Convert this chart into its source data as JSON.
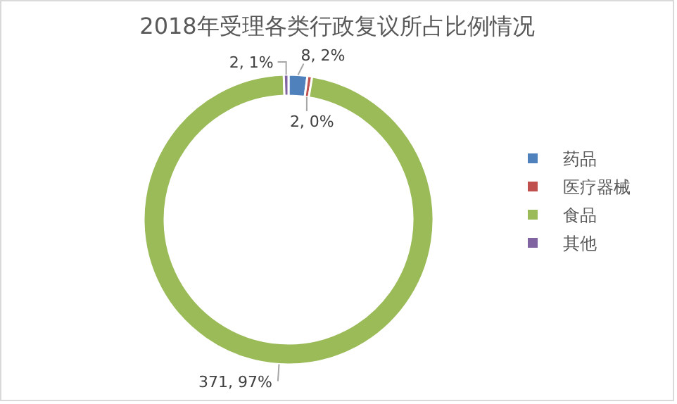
{
  "chart_data": {
    "type": "donut",
    "title": "2018年受理各类行政复议所占比例情况",
    "categories": [
      "药品",
      "医疗器械",
      "食品",
      "其他"
    ],
    "values": [
      8,
      2,
      371,
      2
    ],
    "colors": [
      "#4f81bd",
      "#c0504d",
      "#9bbb59",
      "#8064a2"
    ],
    "value_labels": [
      "8, 2%",
      "2, 0%",
      "371, 97%",
      "2, 1%"
    ],
    "legend": "right"
  }
}
